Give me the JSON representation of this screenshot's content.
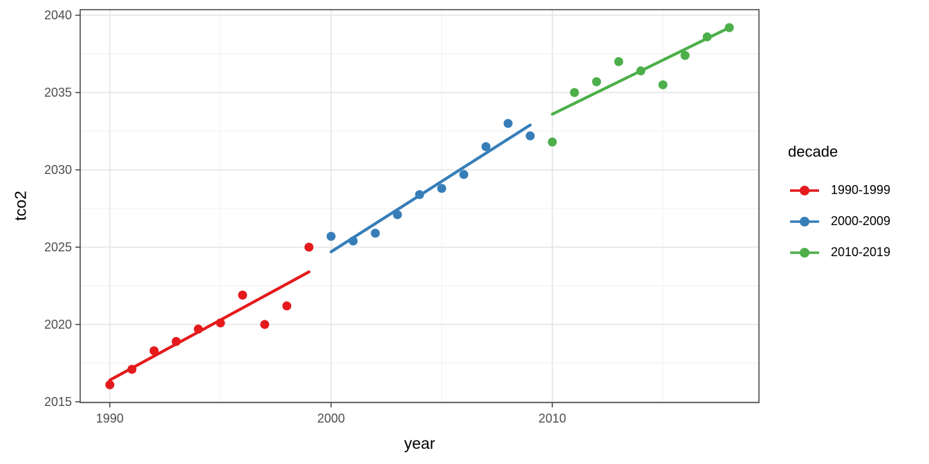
{
  "chart_data": {
    "type": "scatter",
    "title": "",
    "xlabel": "year",
    "ylabel": "tco2",
    "xlim": [
      1988.66,
      2019.34
    ],
    "ylim": [
      2014.95,
      2040.36
    ],
    "x_major_ticks": [
      1990,
      2000,
      2010
    ],
    "x_minor_ticks": [
      1995,
      2005,
      2015
    ],
    "y_major_ticks": [
      2015,
      2020,
      2025,
      2030,
      2035,
      2040
    ],
    "y_minor_ticks": [
      2017.5,
      2022.5,
      2027.5,
      2032.5,
      2037.5
    ],
    "grid": true,
    "legend": {
      "title": "decade",
      "position": "right"
    },
    "series": [
      {
        "name": "1990-1999",
        "color": "#E41A1C",
        "x": [
          1990,
          1991,
          1992,
          1993,
          1994,
          1995,
          1996,
          1997,
          1998,
          1999
        ],
        "y": [
          2016.1,
          2017.1,
          2018.3,
          2018.9,
          2019.7,
          2020.1,
          2021.9,
          2020.0,
          2021.2,
          2025.0
        ],
        "fit_line": {
          "x1": 1990,
          "y1": 2016.4,
          "x2": 1999,
          "y2": 2023.4
        }
      },
      {
        "name": "2000-2009",
        "color": "#377EB8",
        "x": [
          2000,
          2001,
          2002,
          2003,
          2004,
          2005,
          2006,
          2007,
          2008,
          2009
        ],
        "y": [
          2025.7,
          2025.4,
          2025.9,
          2027.1,
          2028.4,
          2028.8,
          2029.7,
          2031.5,
          2033.0,
          2032.2
        ],
        "fit_line": {
          "x1": 2000,
          "y1": 2024.7,
          "x2": 2009,
          "y2": 2032.9
        }
      },
      {
        "name": "2010-2019",
        "color": "#4DAF4A",
        "x": [
          2010,
          2011,
          2012,
          2013,
          2014,
          2015,
          2016,
          2017,
          2018
        ],
        "y": [
          2031.8,
          2035.0,
          2035.7,
          2037.0,
          2036.4,
          2035.5,
          2037.4,
          2038.6,
          2039.2
        ],
        "fit_line": {
          "x1": 2010,
          "y1": 2033.6,
          "x2": 2018,
          "y2": 2039.2
        }
      }
    ],
    "colors": {
      "background": "#FFFFFF",
      "panel_border": "#333333",
      "grid_major": "#E3E3E3",
      "grid_minor": "#EFEFEF",
      "tick_mark": "#333333",
      "axis_text": "#4D4D4D",
      "axis_title": "#000000"
    }
  }
}
